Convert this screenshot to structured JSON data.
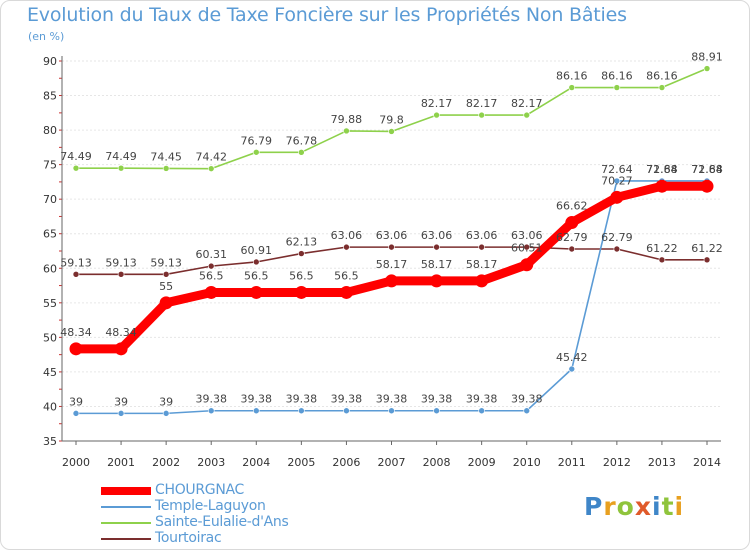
{
  "chart_data": {
    "type": "line",
    "title": "Evolution du Taux de Taxe Foncière sur les Propriétés Non Bâties",
    "unit_label": "(en %)",
    "ylim": [
      35,
      90
    ],
    "yticks": [
      35,
      40,
      45,
      50,
      55,
      60,
      65,
      70,
      75,
      80,
      85,
      90
    ],
    "x": [
      "2000",
      "2001",
      "2002",
      "2003",
      "2004",
      "2005",
      "2006",
      "2007",
      "2008",
      "2009",
      "2010",
      "2011",
      "2012",
      "2013",
      "2014"
    ],
    "series": [
      {
        "name": "CHOURGNAC",
        "color": "#ff0000",
        "values": [
          48.34,
          48.34,
          55,
          56.5,
          56.5,
          56.5,
          56.5,
          58.17,
          58.17,
          58.17,
          60.51,
          66.62,
          70.27,
          71.88,
          71.88
        ],
        "labels": [
          "48.34",
          "48.34",
          "55",
          "56.5",
          "56.5",
          "56.5",
          "56.5",
          "58.17",
          "58.17",
          "58.17",
          "60.51",
          "66.62",
          "70.27",
          "71.88",
          "71.88"
        ]
      },
      {
        "name": "Temple-Laguyon",
        "color": "#5b9bd5",
        "values": [
          39,
          39,
          39,
          39.38,
          39.38,
          39.38,
          39.38,
          39.38,
          39.38,
          39.38,
          39.38,
          45.42,
          72.64,
          72.64,
          72.64
        ],
        "labels": [
          "39",
          "39",
          "39",
          "39.38",
          "39.38",
          "39.38",
          "39.38",
          "39.38",
          "39.38",
          "39.38",
          "39.38",
          "45.42",
          "72.64",
          "72.64",
          "72.64"
        ]
      },
      {
        "name": "Sainte-Eulalie-d'Ans",
        "color": "#8ed14b",
        "values": [
          74.49,
          74.49,
          74.45,
          74.42,
          76.79,
          76.78,
          79.88,
          79.8,
          82.17,
          82.17,
          82.17,
          86.16,
          86.16,
          86.16,
          88.91
        ],
        "labels": [
          "74.49",
          "74.49",
          "74.45",
          "74.42",
          "76.79",
          "76.78",
          "79.88",
          "79.8",
          "82.17",
          "82.17",
          "82.17",
          "86.16",
          "86.16",
          "86.16",
          "88.91"
        ]
      },
      {
        "name": "Tourtoirac",
        "color": "#7b2e2e",
        "values": [
          59.13,
          59.13,
          59.13,
          60.31,
          60.91,
          62.13,
          63.06,
          63.06,
          63.06,
          63.06,
          63.06,
          62.79,
          62.79,
          61.22,
          61.22
        ],
        "labels": [
          "59.13",
          "59.13",
          "59.13",
          "60.31",
          "60.91",
          "62.13",
          "63.06",
          "63.06",
          "63.06",
          "63.06",
          "63.06",
          "62.79",
          "62.79",
          "61.22",
          "61.22"
        ]
      }
    ],
    "legend_position": "bottom-left"
  },
  "logo": {
    "text": "Proxiti",
    "letters": [
      "P",
      "r",
      "o",
      "x",
      "i",
      "t",
      "i"
    ],
    "colors": [
      "#3f86c8",
      "#e8a020",
      "#8fc43c",
      "#e05a2a",
      "#3f86c8",
      "#8fc43c",
      "#e8a020"
    ]
  }
}
